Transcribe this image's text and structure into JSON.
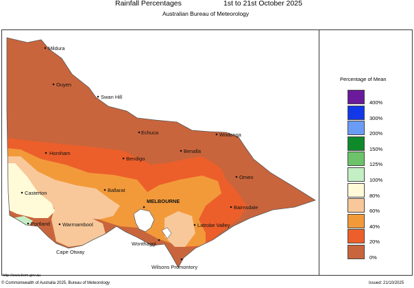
{
  "header": {
    "title": "Rainfall Percentages",
    "dates": "1st to 21st October 2025",
    "subtitle": "Australian Bureau of Meteorology"
  },
  "legend": {
    "title": "Percentage of Mean",
    "items": [
      {
        "label": "400%",
        "color": "#6a1a9a"
      },
      {
        "label": "300%",
        "color": "#1238e8"
      },
      {
        "label": "200%",
        "color": "#6b9cf5"
      },
      {
        "label": "150%",
        "color": "#0f8a2a"
      },
      {
        "label": "125%",
        "color": "#6cc36a"
      },
      {
        "label": "100%",
        "color": "#c4eec4"
      },
      {
        "label": "80%",
        "color": "#fffad8"
      },
      {
        "label": "60%",
        "color": "#f8c89a"
      },
      {
        "label": "40%",
        "color": "#f29a3a"
      },
      {
        "label": "20%",
        "color": "#ec5f2a"
      },
      {
        "label": "0%",
        "color": "#c9653c"
      }
    ]
  },
  "places": [
    {
      "name": "Mildura",
      "bold": false
    },
    {
      "name": "Ouyen",
      "bold": false
    },
    {
      "name": "Swan Hill",
      "bold": false
    },
    {
      "name": "Echuca",
      "bold": false
    },
    {
      "name": "Wodonga",
      "bold": false
    },
    {
      "name": "Horsham",
      "bold": false
    },
    {
      "name": "Bendigo",
      "bold": false
    },
    {
      "name": "Benalla",
      "bold": false
    },
    {
      "name": "Omeo",
      "bold": false
    },
    {
      "name": "Casterton",
      "bold": false
    },
    {
      "name": "Ballarat",
      "bold": false
    },
    {
      "name": "MELBOURNE",
      "bold": true
    },
    {
      "name": "Bairnsdale",
      "bold": false
    },
    {
      "name": "Portland",
      "bold": false
    },
    {
      "name": "Warrnambool",
      "bold": false
    },
    {
      "name": "Latrobe Valley",
      "bold": false
    },
    {
      "name": "Wonthaggi",
      "bold": false
    },
    {
      "name": "Cape Otway",
      "bold": false
    },
    {
      "name": "Wilsons Promontory",
      "bold": false
    }
  ],
  "footer": {
    "url": "http://www.bom.gov.au",
    "copyright": "© Commonwealth of Australia 2025, Bureau of Meteorology",
    "issued": "Issued: 21/10/2025"
  }
}
